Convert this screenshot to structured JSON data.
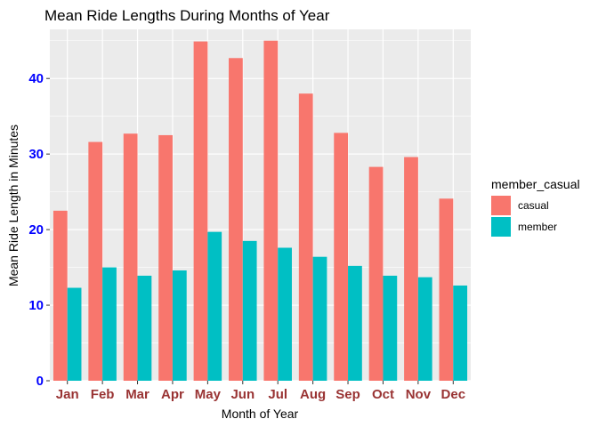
{
  "chart_data": {
    "type": "bar",
    "title": "Mean Ride Lengths During Months of Year",
    "xlabel": "Month of Year",
    "ylabel": "Mean Ride Length in Minutes",
    "categories": [
      "Jan",
      "Feb",
      "Mar",
      "Apr",
      "May",
      "Jun",
      "Jul",
      "Aug",
      "Sep",
      "Oct",
      "Nov",
      "Dec"
    ],
    "series": [
      {
        "name": "casual",
        "color": "#F8766D",
        "values": [
          22.5,
          31.6,
          32.7,
          32.5,
          44.9,
          42.7,
          45.0,
          38.0,
          32.8,
          28.3,
          29.6,
          24.1
        ]
      },
      {
        "name": "member",
        "color": "#00BFC4",
        "values": [
          12.3,
          15.0,
          13.9,
          14.6,
          19.7,
          18.5,
          17.6,
          16.4,
          15.2,
          13.9,
          13.7,
          12.6
        ]
      }
    ],
    "yticks": [
      0,
      10,
      20,
      30,
      40
    ],
    "ylim": [
      0,
      46.5
    ],
    "grid": true,
    "legend": {
      "title": "member_casual",
      "position": "right"
    },
    "colors": {
      "panel_background": "#EBEBEB",
      "grid": "#FFFFFF",
      "ytick_label": "#0000FF",
      "xtick_label": "#993333"
    }
  }
}
